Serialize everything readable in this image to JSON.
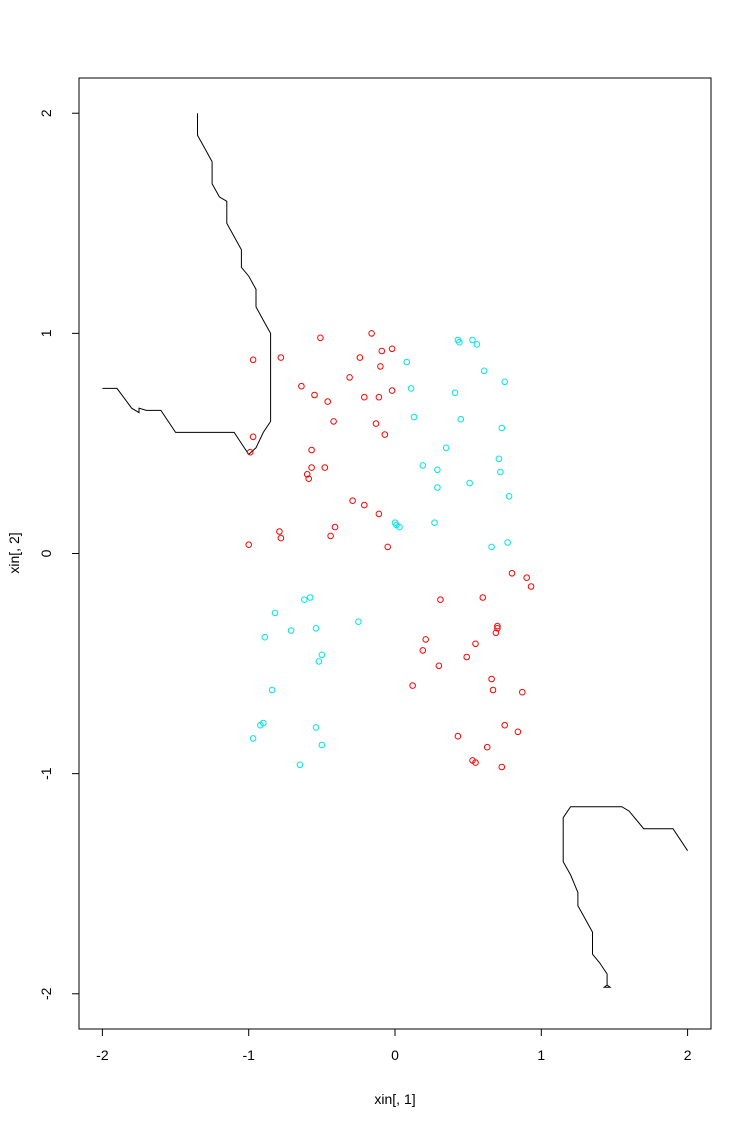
{
  "chart_data": {
    "type": "scatter",
    "xlabel": "xin[, 1]",
    "ylabel": "xin[, 2]",
    "xlim": [
      -2.16,
      2.16
    ],
    "ylim": [
      -2.16,
      2.16
    ],
    "xticks": [
      -2,
      -1,
      0,
      1,
      2
    ],
    "yticks": [
      -2,
      -1,
      0,
      1,
      2
    ],
    "xtick_labels": [
      "-2",
      "-1",
      "0",
      "1",
      "2"
    ],
    "ytick_labels": [
      "-2",
      "-1",
      "0",
      "1",
      "2"
    ],
    "grid": false,
    "colors": {
      "red_class": "#ff0000",
      "cyan_class": "#00e5e5",
      "boundary": "#000000"
    },
    "series": [
      {
        "color": "#ff0000",
        "marker": "open-circle",
        "points": [
          [
            -0.97,
            0.88
          ],
          [
            -0.78,
            0.89
          ],
          [
            -0.51,
            0.98
          ],
          [
            -0.16,
            1.0
          ],
          [
            -0.02,
            0.93
          ],
          [
            -0.09,
            0.92
          ],
          [
            -0.24,
            0.89
          ],
          [
            -0.1,
            0.85
          ],
          [
            -0.31,
            0.8
          ],
          [
            -0.64,
            0.76
          ],
          [
            -0.55,
            0.72
          ],
          [
            -0.21,
            0.71
          ],
          [
            -0.11,
            0.71
          ],
          [
            -0.46,
            0.69
          ],
          [
            -0.02,
            0.74
          ],
          [
            -0.42,
            0.6
          ],
          [
            -0.13,
            0.59
          ],
          [
            -0.07,
            0.54
          ],
          [
            -0.97,
            0.53
          ],
          [
            -0.99,
            0.46
          ],
          [
            -0.57,
            0.47
          ],
          [
            -0.57,
            0.39
          ],
          [
            -0.48,
            0.39
          ],
          [
            -0.6,
            0.36
          ],
          [
            -0.59,
            0.34
          ],
          [
            -0.29,
            0.24
          ],
          [
            -0.21,
            0.22
          ],
          [
            -0.11,
            0.18
          ],
          [
            -0.41,
            0.12
          ],
          [
            -0.79,
            0.1
          ],
          [
            -0.44,
            0.08
          ],
          [
            -0.78,
            0.07
          ],
          [
            -1.0,
            0.04
          ],
          [
            -0.05,
            0.03
          ],
          [
            0.8,
            -0.09
          ],
          [
            0.9,
            -0.11
          ],
          [
            0.93,
            -0.15
          ],
          [
            0.6,
            -0.2
          ],
          [
            0.31,
            -0.21
          ],
          [
            0.7,
            -0.33
          ],
          [
            0.7,
            -0.34
          ],
          [
            0.69,
            -0.36
          ],
          [
            0.21,
            -0.39
          ],
          [
            0.55,
            -0.41
          ],
          [
            0.19,
            -0.44
          ],
          [
            0.49,
            -0.47
          ],
          [
            0.3,
            -0.51
          ],
          [
            0.66,
            -0.57
          ],
          [
            0.12,
            -0.6
          ],
          [
            0.67,
            -0.62
          ],
          [
            0.87,
            -0.63
          ],
          [
            0.75,
            -0.78
          ],
          [
            0.84,
            -0.81
          ],
          [
            0.43,
            -0.83
          ],
          [
            0.63,
            -0.88
          ],
          [
            0.53,
            -0.94
          ],
          [
            0.55,
            -0.95
          ],
          [
            0.73,
            -0.97
          ]
        ]
      },
      {
        "color": "#00e5e5",
        "marker": "open-circle",
        "points": [
          [
            0.43,
            0.97
          ],
          [
            0.44,
            0.96
          ],
          [
            0.53,
            0.97
          ],
          [
            0.56,
            0.95
          ],
          [
            0.08,
            0.87
          ],
          [
            0.61,
            0.83
          ],
          [
            0.75,
            0.78
          ],
          [
            0.11,
            0.75
          ],
          [
            0.41,
            0.73
          ],
          [
            0.13,
            0.62
          ],
          [
            0.45,
            0.61
          ],
          [
            0.73,
            0.57
          ],
          [
            0.35,
            0.48
          ],
          [
            0.71,
            0.43
          ],
          [
            0.19,
            0.4
          ],
          [
            0.29,
            0.38
          ],
          [
            0.72,
            0.37
          ],
          [
            0.51,
            0.32
          ],
          [
            0.29,
            0.3
          ],
          [
            0.78,
            0.26
          ],
          [
            0.27,
            0.14
          ],
          [
            0.0,
            0.14
          ],
          [
            0.01,
            0.13
          ],
          [
            0.03,
            0.12
          ],
          [
            0.77,
            0.05
          ],
          [
            0.66,
            0.03
          ],
          [
            -0.58,
            -0.2
          ],
          [
            -0.62,
            -0.21
          ],
          [
            -0.82,
            -0.27
          ],
          [
            -0.25,
            -0.31
          ],
          [
            -0.71,
            -0.35
          ],
          [
            -0.54,
            -0.34
          ],
          [
            -0.89,
            -0.38
          ],
          [
            -0.5,
            -0.46
          ],
          [
            -0.52,
            -0.49
          ],
          [
            -0.84,
            -0.62
          ],
          [
            -0.9,
            -0.77
          ],
          [
            -0.92,
            -0.78
          ],
          [
            -0.54,
            -0.79
          ],
          [
            -0.97,
            -0.84
          ],
          [
            -0.5,
            -0.87
          ],
          [
            -0.65,
            -0.96
          ]
        ]
      }
    ],
    "boundaries": [
      {
        "color": "#000000",
        "points": [
          [
            -2.0,
            0.75
          ],
          [
            -1.9,
            0.75
          ],
          [
            -1.8,
            0.66
          ],
          [
            -1.75,
            0.64
          ],
          [
            -1.75,
            0.66
          ],
          [
            -1.7,
            0.65
          ],
          [
            -1.6,
            0.65
          ],
          [
            -1.5,
            0.55
          ],
          [
            -1.3,
            0.55
          ],
          [
            -1.1,
            0.55
          ],
          [
            -1.0,
            0.45
          ],
          [
            -0.95,
            0.48
          ],
          [
            -0.9,
            0.55
          ],
          [
            -0.85,
            0.6
          ],
          [
            -0.85,
            1.0
          ],
          [
            -0.9,
            1.06
          ],
          [
            -0.95,
            1.12
          ],
          [
            -0.95,
            1.2
          ],
          [
            -1.0,
            1.26
          ],
          [
            -1.05,
            1.3
          ],
          [
            -1.05,
            1.38
          ],
          [
            -1.1,
            1.44
          ],
          [
            -1.15,
            1.5
          ],
          [
            -1.15,
            1.6
          ],
          [
            -1.2,
            1.62
          ],
          [
            -1.25,
            1.68
          ],
          [
            -1.25,
            1.78
          ],
          [
            -1.3,
            1.84
          ],
          [
            -1.35,
            1.9
          ],
          [
            -1.35,
            2.0
          ]
        ]
      },
      {
        "color": "#000000",
        "points": [
          [
            2.0,
            -1.35
          ],
          [
            1.95,
            -1.3
          ],
          [
            1.9,
            -1.25
          ],
          [
            1.7,
            -1.25
          ],
          [
            1.6,
            -1.17
          ],
          [
            1.55,
            -1.15
          ],
          [
            1.3,
            -1.15
          ],
          [
            1.2,
            -1.15
          ],
          [
            1.15,
            -1.2
          ],
          [
            1.15,
            -1.4
          ],
          [
            1.2,
            -1.46
          ],
          [
            1.25,
            -1.54
          ],
          [
            1.25,
            -1.6
          ],
          [
            1.3,
            -1.66
          ],
          [
            1.35,
            -1.72
          ],
          [
            1.35,
            -1.82
          ],
          [
            1.4,
            -1.86
          ],
          [
            1.45,
            -1.91
          ],
          [
            1.45,
            -1.96
          ],
          [
            1.43,
            -1.97
          ],
          [
            1.47,
            -1.97
          ],
          [
            1.45,
            -1.96
          ]
        ]
      }
    ]
  }
}
